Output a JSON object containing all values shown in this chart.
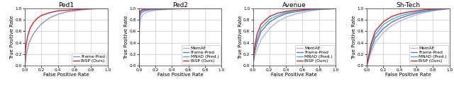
{
  "panels": [
    {
      "title": "Ped1",
      "curves": [
        {
          "label": "Frame-Pred",
          "color": "#9090cc",
          "linewidth": 1.0,
          "x": [
            0.0,
            0.02,
            0.05,
            0.1,
            0.15,
            0.2,
            0.3,
            0.4,
            0.5,
            0.6,
            0.7,
            0.8,
            0.9,
            1.0
          ],
          "y": [
            0.0,
            0.22,
            0.4,
            0.55,
            0.65,
            0.73,
            0.84,
            0.9,
            0.94,
            0.96,
            0.98,
            0.99,
            1.0,
            1.0
          ]
        },
        {
          "label": "BiSP (Ours)",
          "color": "#dd2222",
          "linewidth": 1.0,
          "x": [
            0.0,
            0.01,
            0.03,
            0.06,
            0.1,
            0.15,
            0.2,
            0.3,
            0.4,
            0.5,
            0.6,
            0.7,
            0.8,
            0.9,
            1.0
          ],
          "y": [
            0.13,
            0.32,
            0.5,
            0.65,
            0.75,
            0.83,
            0.88,
            0.93,
            0.96,
            0.97,
            0.98,
            0.99,
            1.0,
            1.0,
            1.0
          ]
        }
      ],
      "has_ylabel": true,
      "legend_loc": "lower right"
    },
    {
      "title": "Ped2",
      "curves": [
        {
          "label": "MemAE",
          "color": "#b0b8e0",
          "linewidth": 1.0,
          "x": [
            0.0,
            0.005,
            0.01,
            0.02,
            0.05,
            0.1,
            0.2,
            0.4,
            0.6,
            0.8,
            1.0
          ],
          "y": [
            0.0,
            0.55,
            0.72,
            0.82,
            0.9,
            0.94,
            0.97,
            0.99,
            1.0,
            1.0,
            1.0
          ]
        },
        {
          "label": "Frame-Pred",
          "color": "#7070b8",
          "linewidth": 1.0,
          "x": [
            0.0,
            0.003,
            0.007,
            0.015,
            0.03,
            0.07,
            0.15,
            0.3,
            0.5,
            0.8,
            1.0
          ],
          "y": [
            0.0,
            0.6,
            0.78,
            0.88,
            0.93,
            0.96,
            0.98,
            0.99,
            1.0,
            1.0,
            1.0
          ]
        },
        {
          "label": "MNAD (Pred.)",
          "color": "#30b8e0",
          "linewidth": 1.0,
          "x": [
            0.0,
            0.002,
            0.006,
            0.012,
            0.025,
            0.05,
            0.1,
            0.2,
            0.4,
            0.7,
            1.0
          ],
          "y": [
            0.0,
            0.65,
            0.82,
            0.9,
            0.95,
            0.97,
            0.98,
            0.99,
            1.0,
            1.0,
            1.0
          ]
        },
        {
          "label": "BiSP (Ours)",
          "color": "#dd2222",
          "linewidth": 1.0,
          "x": [
            0.0,
            0.001,
            0.004,
            0.01,
            0.02,
            0.04,
            0.08,
            0.18,
            0.4,
            0.7,
            1.0
          ],
          "y": [
            0.0,
            0.7,
            0.87,
            0.93,
            0.96,
            0.98,
            0.99,
            0.995,
            1.0,
            1.0,
            1.0
          ]
        }
      ],
      "has_ylabel": true,
      "legend_loc": "lower right"
    },
    {
      "title": "Avenue",
      "curves": [
        {
          "label": "MemAE",
          "color": "#b0b8e0",
          "linewidth": 1.0,
          "x": [
            0.0,
            0.02,
            0.05,
            0.1,
            0.2,
            0.3,
            0.4,
            0.5,
            0.6,
            0.7,
            0.8,
            0.9,
            1.0
          ],
          "y": [
            0.0,
            0.15,
            0.28,
            0.46,
            0.65,
            0.77,
            0.85,
            0.9,
            0.93,
            0.96,
            0.98,
            0.99,
            1.0
          ]
        },
        {
          "label": "Frame-Pred",
          "color": "#7070b8",
          "linewidth": 1.0,
          "x": [
            0.0,
            0.02,
            0.05,
            0.1,
            0.2,
            0.3,
            0.4,
            0.5,
            0.6,
            0.7,
            0.8,
            0.9,
            1.0
          ],
          "y": [
            0.0,
            0.22,
            0.4,
            0.6,
            0.76,
            0.85,
            0.91,
            0.94,
            0.96,
            0.98,
            0.99,
            0.995,
            1.0
          ]
        },
        {
          "label": "MNAD (Pred.)",
          "color": "#30b8e0",
          "linewidth": 1.0,
          "x": [
            0.0,
            0.02,
            0.05,
            0.1,
            0.2,
            0.3,
            0.4,
            0.5,
            0.6,
            0.7,
            0.8,
            0.9,
            1.0
          ],
          "y": [
            0.0,
            0.26,
            0.46,
            0.66,
            0.81,
            0.88,
            0.93,
            0.95,
            0.97,
            0.98,
            0.99,
            0.995,
            1.0
          ]
        },
        {
          "label": "BiSP (Ours)",
          "color": "#dd2222",
          "linewidth": 1.0,
          "x": [
            0.0,
            0.02,
            0.05,
            0.1,
            0.2,
            0.3,
            0.4,
            0.5,
            0.6,
            0.7,
            0.8,
            0.9,
            1.0
          ],
          "y": [
            0.0,
            0.32,
            0.55,
            0.73,
            0.86,
            0.92,
            0.95,
            0.97,
            0.98,
            0.99,
            0.995,
            1.0,
            1.0
          ]
        }
      ],
      "has_ylabel": true,
      "legend_loc": "lower right"
    },
    {
      "title": "Sh-Tech",
      "curves": [
        {
          "label": "MemAE",
          "color": "#b0b8e0",
          "linewidth": 1.0,
          "x": [
            0.0,
            0.05,
            0.1,
            0.2,
            0.3,
            0.4,
            0.5,
            0.6,
            0.7,
            0.8,
            0.9,
            1.0
          ],
          "y": [
            0.0,
            0.22,
            0.4,
            0.58,
            0.7,
            0.78,
            0.84,
            0.89,
            0.93,
            0.96,
            0.98,
            1.0
          ]
        },
        {
          "label": "Frame-Pred",
          "color": "#7070b8",
          "linewidth": 1.0,
          "x": [
            0.0,
            0.05,
            0.1,
            0.2,
            0.3,
            0.4,
            0.5,
            0.6,
            0.7,
            0.8,
            0.9,
            1.0
          ],
          "y": [
            0.0,
            0.28,
            0.48,
            0.65,
            0.76,
            0.83,
            0.88,
            0.92,
            0.95,
            0.97,
            0.99,
            1.0
          ]
        },
        {
          "label": "MNAD (Pred.)",
          "color": "#30b8e0",
          "linewidth": 1.0,
          "x": [
            0.0,
            0.05,
            0.1,
            0.2,
            0.3,
            0.4,
            0.5,
            0.6,
            0.7,
            0.8,
            0.9,
            1.0
          ],
          "y": [
            0.0,
            0.33,
            0.54,
            0.72,
            0.81,
            0.87,
            0.91,
            0.94,
            0.96,
            0.98,
            0.99,
            1.0
          ]
        },
        {
          "label": "BiSP (Ours)",
          "color": "#dd2222",
          "linewidth": 1.0,
          "x": [
            0.0,
            0.05,
            0.1,
            0.2,
            0.3,
            0.4,
            0.5,
            0.6,
            0.7,
            0.8,
            0.9,
            1.0
          ],
          "y": [
            0.0,
            0.38,
            0.6,
            0.77,
            0.86,
            0.91,
            0.94,
            0.96,
            0.98,
            0.99,
            0.995,
            1.0
          ]
        }
      ],
      "has_ylabel": true,
      "legend_loc": "lower right"
    }
  ],
  "xlabel": "False Positive Rate",
  "ylabel": "True Positive Rate",
  "tick_vals": [
    0.0,
    0.2,
    0.4,
    0.6,
    0.8,
    1.0
  ],
  "tick_labels": [
    "0.0",
    "0.2",
    "0.4",
    "0.6",
    "0.8",
    "1.0"
  ],
  "grid_color": "#cccccc",
  "bg_color": "#ffffff",
  "legend_fontsize": 4.2,
  "axis_fontsize": 5.0,
  "title_fontsize": 6.5,
  "tick_fontsize": 4.2
}
